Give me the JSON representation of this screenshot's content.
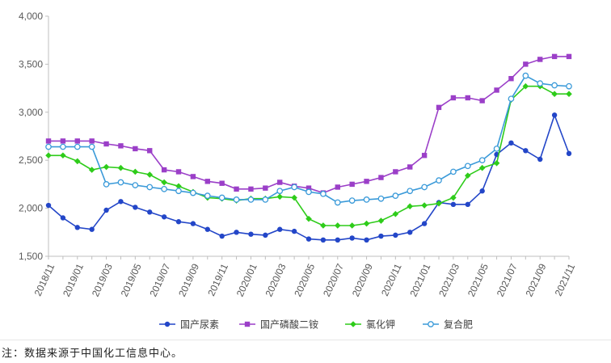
{
  "chart_data": {
    "type": "line",
    "title": "",
    "xlabel": "",
    "ylabel": "",
    "ylim": [
      1500,
      4000
    ],
    "yticks": [
      "1,500",
      "2,000",
      "2,500",
      "3,000",
      "3,500",
      "4,000"
    ],
    "grid": false,
    "legend_position": "bottom",
    "x": [
      "2018/11",
      "2018/12",
      "2019/01",
      "2019/02",
      "2019/03",
      "2019/04",
      "2019/05",
      "2019/06",
      "2019/07",
      "2019/08",
      "2019/09",
      "2019/10",
      "2019/11",
      "2019/12",
      "2020/01",
      "2020/02",
      "2020/03",
      "2020/04",
      "2020/05",
      "2020/06",
      "2020/07",
      "2020/08",
      "2020/09",
      "2020/10",
      "2020/11",
      "2020/12",
      "2021/01",
      "2021/02",
      "2021/03",
      "2021/04",
      "2021/05",
      "2021/06",
      "2021/07",
      "2021/08",
      "2021/09",
      "2021/10",
      "2021/11"
    ],
    "x_tick_labels": [
      "2018/11",
      "2019/01",
      "2019/03",
      "2019/05",
      "2019/07",
      "2019/09",
      "2019/11",
      "2020/01",
      "2020/03",
      "2020/05",
      "2020/07",
      "2020/09",
      "2020/11",
      "2021/01",
      "2021/03",
      "2021/05",
      "2021/07",
      "2021/09",
      "2021/11"
    ],
    "series": [
      {
        "name": "国产尿素",
        "color": "#2346c8",
        "marker": "filled-circle",
        "values": [
          2030,
          1900,
          1800,
          1780,
          1980,
          2070,
          2010,
          1960,
          1910,
          1860,
          1840,
          1780,
          1710,
          1750,
          1730,
          1720,
          1780,
          1760,
          1680,
          1670,
          1670,
          1690,
          1670,
          1710,
          1720,
          1750,
          1840,
          2060,
          2040,
          2040,
          2180,
          2560,
          2680,
          2600,
          2510,
          2970,
          2570
        ]
      },
      {
        "name": "国产磷酸二铵",
        "color": "#9b3fc8",
        "marker": "filled-square",
        "values": [
          2700,
          2700,
          2700,
          2700,
          2670,
          2650,
          2620,
          2600,
          2400,
          2380,
          2330,
          2280,
          2260,
          2200,
          2200,
          2210,
          2270,
          2230,
          2210,
          2160,
          2220,
          2250,
          2280,
          2320,
          2380,
          2430,
          2550,
          3050,
          3150,
          3150,
          3120,
          3230,
          3350,
          3500,
          3550,
          3580,
          3580
        ]
      },
      {
        "name": "氯化钾",
        "color": "#2ecc1a",
        "marker": "filled-diamond",
        "values": [
          2550,
          2550,
          2490,
          2400,
          2430,
          2420,
          2380,
          2350,
          2270,
          2230,
          2170,
          2110,
          2100,
          2080,
          2100,
          2100,
          2120,
          2110,
          1890,
          1820,
          1820,
          1820,
          1840,
          1870,
          1940,
          2020,
          2030,
          2050,
          2110,
          2340,
          2420,
          2470,
          3130,
          3270,
          3270,
          3190,
          3190
        ]
      },
      {
        "name": "复合肥",
        "color": "#3a9ad9",
        "marker": "open-circle",
        "values": [
          2640,
          2640,
          2640,
          2640,
          2250,
          2270,
          2240,
          2220,
          2200,
          2180,
          2160,
          2130,
          2110,
          2090,
          2090,
          2090,
          2180,
          2220,
          2170,
          2150,
          2060,
          2080,
          2090,
          2100,
          2130,
          2180,
          2220,
          2290,
          2380,
          2440,
          2500,
          2620,
          3140,
          3380,
          3300,
          3280,
          3270
        ]
      }
    ]
  },
  "footnote": "注：数据来源于中国化工信息中心。"
}
